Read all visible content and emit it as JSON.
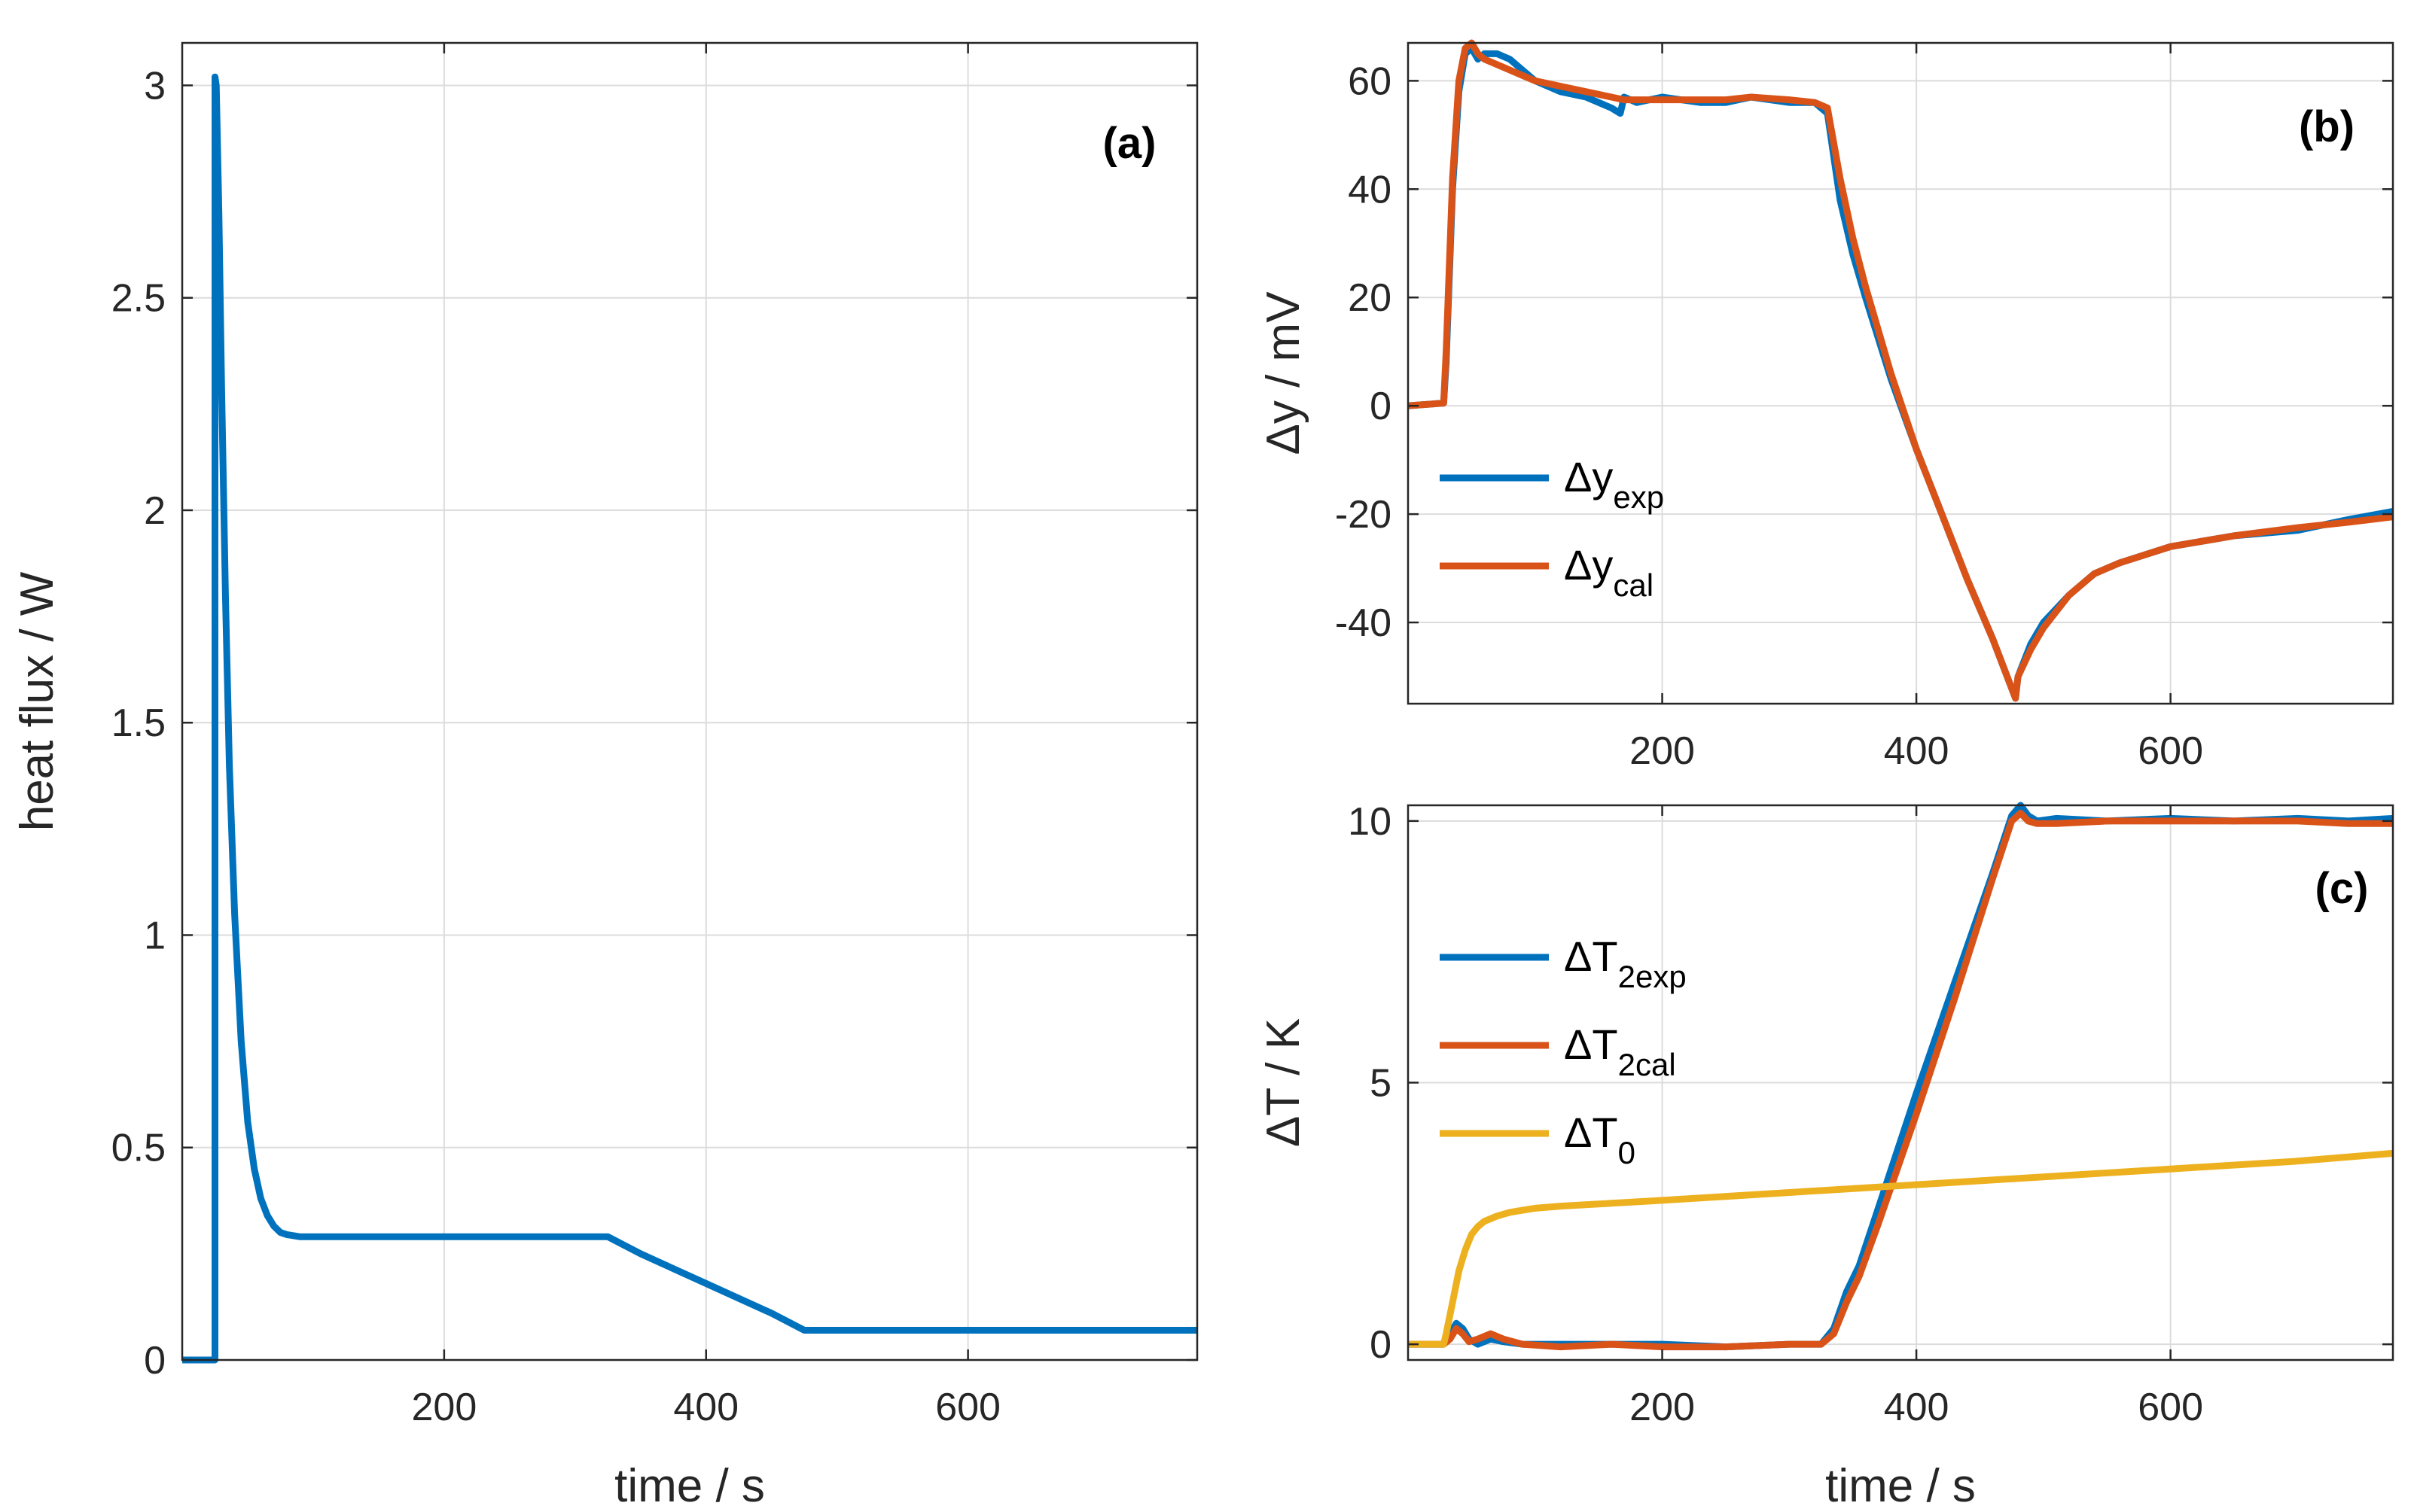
{
  "chart_data": [
    {
      "panel": "(a)",
      "type": "line",
      "xlabel": "time / s",
      "ylabel": "heat flux / W",
      "xlim": [
        0,
        775
      ],
      "ylim": [
        0,
        3.1
      ],
      "xticks": [
        200,
        400,
        600
      ],
      "yticks": [
        0,
        0.5,
        1,
        1.5,
        2,
        2.5,
        3
      ],
      "ytick_labels": [
        "0",
        "0.5",
        "1",
        "1.5",
        "2",
        "2.5",
        "3"
      ],
      "grid": true,
      "series": [
        {
          "name": "heat flux",
          "color": "#0072BD",
          "x": [
            0,
            25,
            25,
            26,
            28,
            30,
            33,
            36,
            40,
            45,
            50,
            55,
            60,
            65,
            70,
            75,
            80,
            90,
            100,
            150,
            200,
            250,
            300,
            325,
            350,
            400,
            450,
            475,
            500,
            600,
            700,
            775
          ],
          "y": [
            0,
            0,
            3.02,
            3.0,
            2.7,
            2.3,
            1.8,
            1.4,
            1.05,
            0.75,
            0.56,
            0.45,
            0.38,
            0.34,
            0.315,
            0.3,
            0.295,
            0.29,
            0.29,
            0.29,
            0.29,
            0.29,
            0.29,
            0.29,
            0.25,
            0.18,
            0.11,
            0.07,
            0.07,
            0.07,
            0.07,
            0.07
          ]
        }
      ]
    },
    {
      "panel": "(b)",
      "type": "line",
      "xlabel": "",
      "ylabel": "Δy / mV",
      "xlim": [
        0,
        775
      ],
      "ylim": [
        -55,
        67
      ],
      "xticks": [
        200,
        400,
        600
      ],
      "yticks": [
        -40,
        -20,
        0,
        20,
        40,
        60
      ],
      "ytick_labels": [
        "-40",
        "-20",
        "0",
        "20",
        "40",
        "60"
      ],
      "grid": true,
      "legend": [
        {
          "base": "Δy",
          "sub": "exp"
        },
        {
          "base": "Δy",
          "sub": "cal"
        }
      ],
      "series": [
        {
          "name": "Δy_exp",
          "color": "#0072BD",
          "x": [
            0,
            28,
            30,
            35,
            40,
            45,
            50,
            55,
            60,
            70,
            80,
            90,
            100,
            120,
            140,
            160,
            167,
            170,
            180,
            200,
            230,
            250,
            270,
            300,
            320,
            330,
            340,
            350,
            360,
            380,
            400,
            420,
            440,
            460,
            478,
            480,
            490,
            500,
            520,
            540,
            560,
            600,
            650,
            700,
            740,
            775
          ],
          "y": [
            0,
            0.5,
            8,
            40,
            58,
            65,
            66,
            64,
            65,
            65,
            64,
            62,
            60,
            58,
            57,
            55,
            54,
            57,
            56,
            57,
            56,
            56,
            57,
            56,
            56,
            54,
            38,
            28,
            20,
            5,
            -8,
            -20,
            -32,
            -43,
            -54,
            -50,
            -44,
            -40,
            -35,
            -31,
            -29,
            -26,
            -24,
            -23,
            -21,
            -19.5
          ]
        },
        {
          "name": "Δy_cal",
          "color": "#D95319",
          "x": [
            0,
            28,
            30,
            35,
            40,
            45,
            50,
            55,
            60,
            70,
            80,
            90,
            100,
            120,
            140,
            160,
            170,
            180,
            200,
            230,
            250,
            270,
            300,
            320,
            330,
            340,
            350,
            360,
            380,
            400,
            420,
            440,
            460,
            478,
            480,
            490,
            500,
            520,
            540,
            560,
            600,
            650,
            700,
            740,
            775
          ],
          "y": [
            0,
            0.5,
            10,
            42,
            60,
            66,
            67,
            65,
            64,
            63,
            62,
            61,
            60,
            59,
            58,
            57,
            56.5,
            56.5,
            56.5,
            56.5,
            56.5,
            57,
            56.5,
            56,
            55,
            42,
            31,
            22,
            6,
            -8,
            -20,
            -32,
            -43,
            -54,
            -50,
            -45,
            -41,
            -35,
            -31,
            -29,
            -26,
            -24,
            -22.5,
            -21.5,
            -20.5
          ]
        }
      ]
    },
    {
      "panel": "(c)",
      "type": "line",
      "xlabel": "time / s",
      "ylabel": "ΔT / K",
      "xlim": [
        0,
        775
      ],
      "ylim": [
        -0.3,
        10.3
      ],
      "xticks": [
        200,
        400,
        600
      ],
      "yticks": [
        0,
        5,
        10
      ],
      "ytick_labels": [
        "0",
        "5",
        "10"
      ],
      "grid": true,
      "legend": [
        {
          "base": "ΔT",
          "sub": "2exp"
        },
        {
          "base": "ΔT",
          "sub": "2cal"
        },
        {
          "base": "ΔT",
          "sub": "0"
        }
      ],
      "series": [
        {
          "name": "ΔT_2exp",
          "color": "#0072BD",
          "x": [
            0,
            28,
            33,
            38,
            43,
            48,
            55,
            65,
            75,
            90,
            120,
            160,
            200,
            250,
            300,
            325,
            335,
            345,
            355,
            370,
            400,
            430,
            460,
            475,
            482,
            488,
            495,
            510,
            550,
            600,
            650,
            700,
            740,
            775
          ],
          "y": [
            0,
            0,
            0.2,
            0.4,
            0.3,
            0.1,
            0.0,
            0.1,
            0.05,
            0,
            0,
            0,
            0,
            -0.05,
            0,
            0,
            0.3,
            1.0,
            1.5,
            2.6,
            4.8,
            6.9,
            9.0,
            10.1,
            10.3,
            10.1,
            10.0,
            10.05,
            10.0,
            10.05,
            10.0,
            10.05,
            10.0,
            10.05
          ]
        },
        {
          "name": "ΔT_2cal",
          "color": "#D95319",
          "x": [
            0,
            28,
            33,
            38,
            43,
            48,
            55,
            65,
            75,
            90,
            120,
            160,
            200,
            250,
            300,
            325,
            335,
            345,
            355,
            370,
            400,
            430,
            460,
            475,
            482,
            488,
            495,
            510,
            550,
            600,
            650,
            700,
            740,
            775
          ],
          "y": [
            0,
            0,
            0.1,
            0.3,
            0.2,
            0.05,
            0.1,
            0.2,
            0.1,
            0,
            -0.05,
            0,
            -0.05,
            -0.05,
            0,
            0,
            0.2,
            0.8,
            1.3,
            2.3,
            4.4,
            6.6,
            8.9,
            10.0,
            10.15,
            10.0,
            9.95,
            9.95,
            10.0,
            10.0,
            10.0,
            10.0,
            9.95,
            9.95
          ]
        },
        {
          "name": "ΔT_0",
          "color": "#EDB120",
          "x": [
            0,
            28,
            30,
            35,
            40,
            45,
            50,
            55,
            60,
            70,
            80,
            90,
            100,
            120,
            150,
            200,
            300,
            400,
            500,
            600,
            700,
            775
          ],
          "y": [
            0,
            0,
            0.2,
            0.8,
            1.4,
            1.8,
            2.1,
            2.25,
            2.35,
            2.45,
            2.52,
            2.56,
            2.6,
            2.64,
            2.68,
            2.75,
            2.9,
            3.05,
            3.2,
            3.35,
            3.5,
            3.65
          ]
        }
      ]
    }
  ]
}
